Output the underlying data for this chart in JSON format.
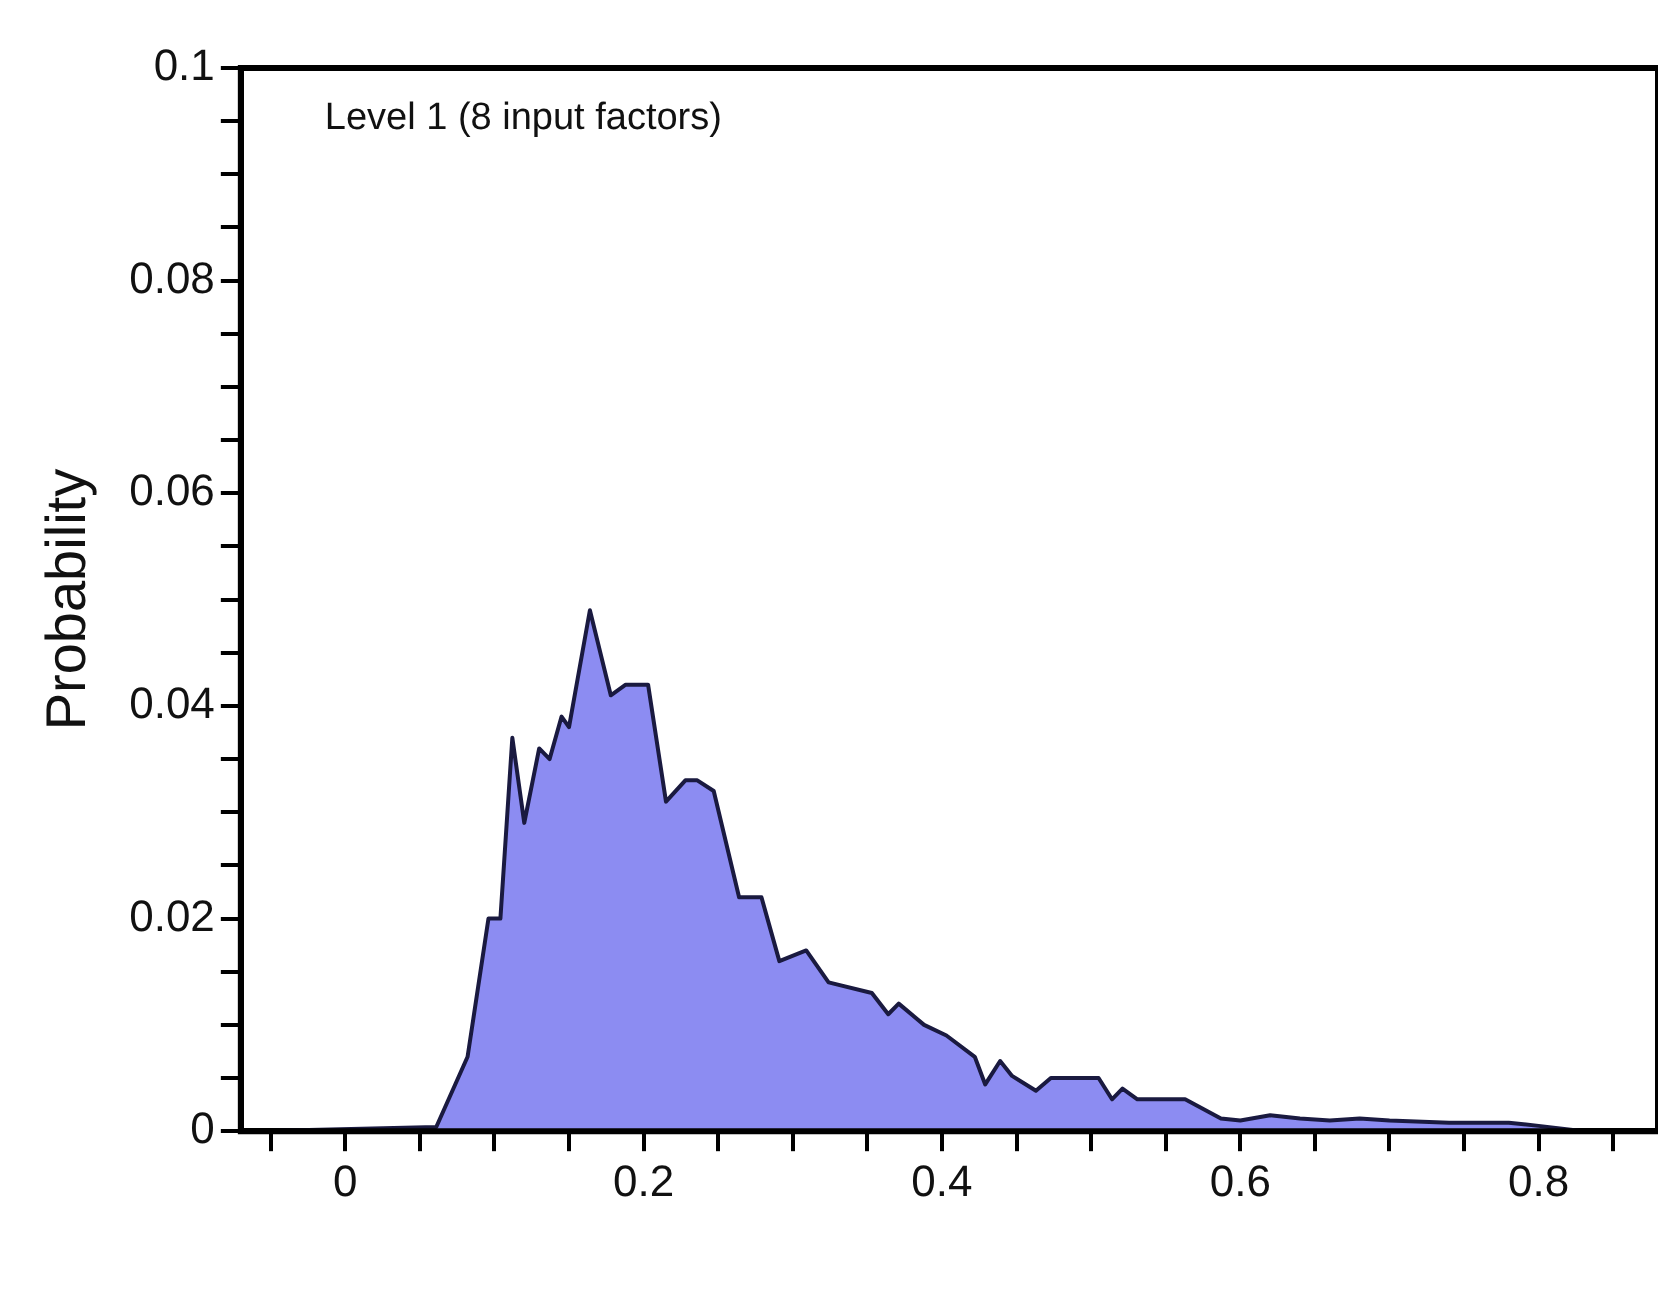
{
  "chart_data": {
    "type": "area",
    "ylabel": "Probability",
    "annotations": [
      "Level 1 (8 input factors)"
    ],
    "x": [
      -0.06,
      0.061,
      0.082,
      0.096,
      0.104,
      0.112,
      0.12,
      0.13,
      0.137,
      0.145,
      0.15,
      0.164,
      0.178,
      0.188,
      0.203,
      0.215,
      0.228,
      0.236,
      0.247,
      0.264,
      0.279,
      0.291,
      0.309,
      0.324,
      0.353,
      0.364,
      0.371,
      0.388,
      0.403,
      0.422,
      0.429,
      0.439,
      0.447,
      0.463,
      0.473,
      0.505,
      0.514,
      0.521,
      0.531,
      0.563,
      0.587,
      0.6,
      0.62,
      0.64,
      0.66,
      0.68,
      0.7,
      0.74,
      0.78,
      0.8,
      0.83
    ],
    "series": [
      {
        "color": "#8c8cf2",
        "values": [
          0,
          0.0004,
          0.007,
          0.02,
          0.02,
          0.037,
          0.029,
          0.036,
          0.035,
          0.039,
          0.038,
          0.049,
          0.041,
          0.042,
          0.042,
          0.031,
          0.033,
          0.033,
          0.032,
          0.022,
          0.022,
          0.016,
          0.017,
          0.014,
          0.013,
          0.011,
          0.012,
          0.01,
          0.009,
          0.007,
          0.0044,
          0.0066,
          0.0052,
          0.0038,
          0.005,
          0.005,
          0.003,
          0.004,
          0.003,
          0.003,
          0.0012,
          0.001,
          0.0015,
          0.0012,
          0.001,
          0.0012,
          0.001,
          0.0008,
          0.0008,
          0.0005,
          0
        ]
      }
    ],
    "xlim": [
      -0.07,
      0.88
    ],
    "xticks": [
      {
        "value": -0.05,
        "label": null
      },
      0,
      {
        "value": 0.05,
        "label": null
      },
      {
        "value": 0.1,
        "label": null
      },
      {
        "value": 0.15,
        "label": null
      },
      0.2,
      {
        "value": 0.25,
        "label": null
      },
      {
        "value": 0.3,
        "label": null
      },
      {
        "value": 0.35,
        "label": null
      },
      0.4,
      {
        "value": 0.45,
        "label": null
      },
      {
        "value": 0.5,
        "label": null
      },
      {
        "value": 0.55,
        "label": null
      },
      0.6,
      {
        "value": 0.65,
        "label": null
      },
      {
        "value": 0.7,
        "label": null
      },
      {
        "value": 0.75,
        "label": null
      },
      0.8,
      {
        "value": 0.85,
        "label": null
      }
    ],
    "ylim": [
      0,
      0.1
    ],
    "yticks": [
      0,
      {
        "value": 0.005,
        "label": null
      },
      {
        "value": 0.01,
        "label": null
      },
      {
        "value": 0.015,
        "label": null
      },
      0.02,
      {
        "value": 0.025,
        "label": null
      },
      {
        "value": 0.03,
        "label": null
      },
      {
        "value": 0.035,
        "label": null
      },
      0.04,
      {
        "value": 0.045,
        "label": null
      },
      {
        "value": 0.05,
        "label": null
      },
      {
        "value": 0.055,
        "label": null
      },
      0.06,
      {
        "value": 0.065,
        "label": null
      },
      {
        "value": 0.07,
        "label": null
      },
      {
        "value": 0.075,
        "label": null
      },
      0.08,
      {
        "value": 0.085,
        "label": null
      },
      {
        "value": 0.09,
        "label": null
      },
      {
        "value": 0.095,
        "label": null
      },
      0.1
    ],
    "grid": false,
    "legend": false,
    "marker": "none",
    "line_style": "solid"
  }
}
